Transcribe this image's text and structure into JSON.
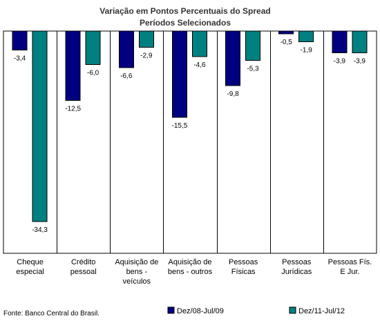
{
  "chart_data": {
    "type": "bar",
    "title": "Variação em Pontos Percentuais do Spread",
    "subtitle": "Períodos Selecionados",
    "categories": [
      [
        "Cheque",
        "especial"
      ],
      [
        "Crédito",
        "pessoal"
      ],
      [
        "Aquisição de",
        "bens -",
        "veículos"
      ],
      [
        "Aquisição de",
        "bens - outros"
      ],
      [
        "Pessoas",
        "Físicas"
      ],
      [
        "Pessoas",
        "Jurídicas"
      ],
      [
        "Pessoas Fís.",
        "E Jur."
      ]
    ],
    "series": [
      {
        "name": "Dez/08-Jul/09",
        "color": "#000080",
        "values": [
          -3.4,
          -12.5,
          -6.6,
          -15.5,
          -9.8,
          -0.5,
          -3.9
        ],
        "labels": [
          "-3,4",
          "-12,5",
          "-6,6",
          "-15,5",
          "-9,8",
          "-0,5",
          "-3,9"
        ]
      },
      {
        "name": "Dez/11-Jul/12",
        "color": "#008080",
        "values": [
          -34.3,
          -6.0,
          -2.9,
          -4.6,
          -5.3,
          -1.9,
          -3.9
        ],
        "labels": [
          "-34,3",
          "-6,0",
          "-2,9",
          "-4,6",
          "-5,3",
          "-1,9",
          "-3,9"
        ]
      }
    ],
    "ylim": [
      -40,
      0
    ],
    "grid": false,
    "legend": "bottom-right"
  },
  "footer": {
    "source": "Fonte: Banco Central do Brasil."
  }
}
